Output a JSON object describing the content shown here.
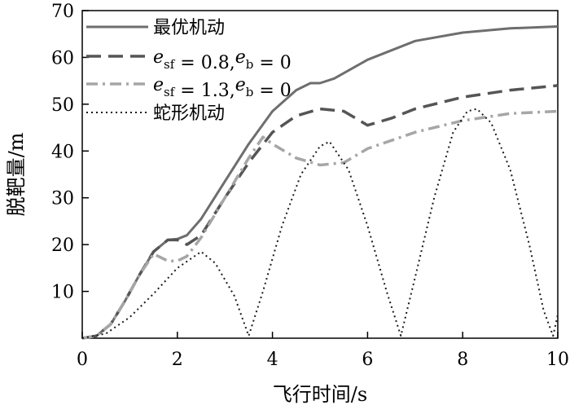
{
  "chart_data": {
    "type": "line",
    "xlabel": "飞行时间/s",
    "ylabel": "脱靶量/m",
    "xlim": [
      0,
      10
    ],
    "ylim": [
      0,
      70
    ],
    "xticks": [
      0,
      2,
      4,
      6,
      8,
      10
    ],
    "yticks": [
      10,
      20,
      30,
      40,
      50,
      60,
      70
    ],
    "grid": false,
    "legend_position": "top-left",
    "series": [
      {
        "name": "最优机动",
        "label_parts": [
          "最优机动"
        ],
        "style": "solid",
        "color": "#6e6e6e",
        "x": [
          0,
          0.3,
          0.6,
          0.9,
          1.2,
          1.5,
          1.8,
          2.0,
          2.2,
          2.5,
          3.0,
          3.5,
          4.0,
          4.5,
          4.8,
          5.0,
          5.3,
          6.0,
          7.0,
          8.0,
          9.0,
          10.0
        ],
        "y": [
          0,
          0.5,
          3,
          8,
          13.5,
          18.5,
          21,
          21.2,
          22,
          25.5,
          33.5,
          41.5,
          48.5,
          53,
          54.5,
          54.5,
          55.5,
          59.5,
          63.5,
          65.3,
          66.2,
          66.6
        ]
      },
      {
        "name": "e_sf = 0.8,e_b = 0",
        "label_parts": [
          "e",
          "sf",
          " = 0.8,",
          "e",
          "b",
          " = 0"
        ],
        "style": "dash",
        "color": "#555555",
        "x": [
          0,
          0.3,
          0.6,
          0.9,
          1.2,
          1.5,
          1.8,
          2.0,
          2.2,
          2.5,
          3.0,
          3.5,
          4.0,
          4.5,
          5.0,
          5.5,
          6.0,
          6.5,
          7.0,
          8.0,
          9.0,
          10.0
        ],
        "y": [
          0,
          0.5,
          3,
          8,
          13.5,
          18.5,
          21,
          21,
          20,
          22,
          30,
          37.5,
          44,
          47.5,
          49,
          48.5,
          45.5,
          47,
          49,
          51.5,
          53,
          54
        ]
      },
      {
        "name": "e_sf = 1.3,e_b = 0",
        "label_parts": [
          "e",
          "sf",
          " = 1.3,",
          "e",
          "b",
          " = 0"
        ],
        "style": "dashdot",
        "color": "#a6a6a6",
        "x": [
          0,
          0.3,
          0.6,
          0.9,
          1.2,
          1.5,
          1.8,
          2.0,
          2.2,
          2.5,
          3.0,
          3.5,
          3.8,
          4.0,
          4.5,
          5.0,
          5.5,
          6.0,
          7.0,
          8.0,
          9.0,
          10.0
        ],
        "y": [
          0,
          0.5,
          3,
          8,
          13.5,
          18,
          16.5,
          16.5,
          17.5,
          21.5,
          30,
          38.5,
          43,
          41.5,
          38.5,
          37,
          37.5,
          40.5,
          44,
          46.5,
          48,
          48.5
        ]
      },
      {
        "name": "蛇形机动",
        "label_parts": [
          "蛇形机动"
        ],
        "style": "dot",
        "color": "#1a1a1a",
        "x": [
          0,
          0.5,
          1.0,
          1.5,
          2.0,
          2.5,
          2.8,
          3.2,
          3.5,
          3.8,
          4.2,
          4.6,
          5.0,
          5.2,
          5.6,
          6.0,
          6.4,
          6.7,
          7.0,
          7.4,
          7.8,
          8.1,
          8.3,
          8.6,
          9.0,
          9.4,
          9.7,
          9.9,
          10.0
        ],
        "y": [
          0,
          1,
          4.5,
          9.5,
          15,
          18.5,
          16,
          9,
          0.5,
          10,
          24,
          35,
          41,
          42,
          36,
          24,
          10,
          0.5,
          13,
          30,
          44,
          48.5,
          49,
          46,
          36,
          20,
          6,
          0.5,
          5
        ]
      }
    ]
  }
}
